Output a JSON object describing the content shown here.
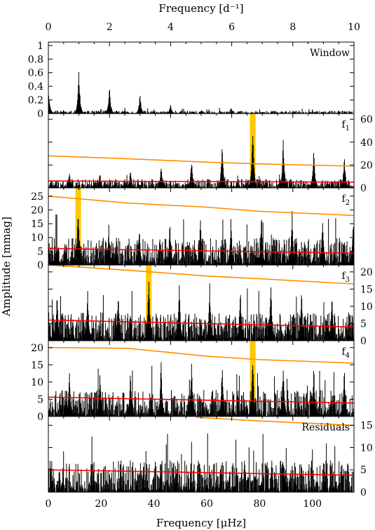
{
  "figure": {
    "top_axis_title": "Frequency [d⁻¹]",
    "bottom_axis_title": "Frequency [μHz]",
    "y_axis_title": "Amplitude [mmag]",
    "colors": {
      "spectrum": "#000000",
      "noise": "#ff0000",
      "significance": "#ff8c00",
      "highlight": "#ffc800"
    }
  },
  "chart_data": {
    "type": "line",
    "x_bottom": {
      "label": "Frequency [μHz]",
      "range": [
        0,
        115.74
      ],
      "ticks": [
        0,
        20,
        40,
        60,
        80,
        100
      ]
    },
    "x_top": {
      "label": "Frequency [d⁻¹]",
      "range": [
        0,
        10
      ],
      "ticks": [
        0,
        2,
        4,
        6,
        8,
        10
      ]
    },
    "y_label": "Amplitude [mmag]",
    "panels": [
      {
        "label": "Window",
        "subscript": "",
        "ylim": [
          0,
          1.05
        ],
        "ticks": [
          0,
          0.2,
          0.4,
          0.6,
          0.8,
          1
        ],
        "ticks_side": "left",
        "highlight": null,
        "spectrum": {
          "noise_level": 0.04,
          "alias_spacing": 11.57,
          "alias_heights": [
            0.35,
            0.69,
            0.46,
            0.32,
            0.14,
            0.06,
            0.04,
            0.03,
            0.03,
            0.03
          ],
          "alias_center": 0
        },
        "noise_line": null,
        "significance_line": null
      },
      {
        "label": "f",
        "subscript": "1",
        "ylim": [
          0,
          65
        ],
        "ticks": [
          0,
          20,
          40,
          60
        ],
        "ticks_side": "right",
        "highlight": {
          "x": 77.4,
          "amplitude": 63
        },
        "spectrum": {
          "noise_level": 7,
          "alias_spacing": 11.57,
          "alias_heights": [
            12,
            16,
            15,
            18,
            22,
            28,
            45,
            63,
            48,
            38,
            32
          ],
          "alias_center": 77.4
        },
        "noise_line": [
          [
            0,
            6
          ],
          [
            115.74,
            5
          ]
        ],
        "significance_line": [
          [
            0,
            28
          ],
          [
            30,
            25.5
          ],
          [
            60,
            22.5
          ],
          [
            80,
            21
          ],
          [
            115.74,
            19
          ]
        ]
      },
      {
        "label": "f",
        "subscript": "2",
        "ylim": [
          0,
          28
        ],
        "ticks": [
          0,
          5,
          10,
          15,
          20,
          25
        ],
        "ticks_side": "left",
        "highlight": {
          "x": 11.3,
          "amplitude": 25
        },
        "spectrum": {
          "noise_level": 9,
          "alias_spacing": 11.57,
          "alias_heights": [
            18,
            25,
            16,
            15,
            18,
            19,
            20,
            21,
            22,
            20,
            18
          ],
          "alias_center": 11.3
        },
        "noise_line": [
          [
            0,
            6
          ],
          [
            115.74,
            4.3
          ]
        ],
        "significance_line": [
          [
            0,
            25
          ],
          [
            30,
            22.5
          ],
          [
            60,
            21
          ],
          [
            80,
            19.5
          ],
          [
            115.74,
            18
          ]
        ]
      },
      {
        "label": "f",
        "subscript": "3",
        "ylim": [
          0,
          22
        ],
        "ticks": [
          0,
          5,
          10,
          15,
          20
        ],
        "ticks_side": "right",
        "highlight": {
          "x": 38.0,
          "amplitude": 21
        },
        "spectrum": {
          "noise_level": 7.5,
          "alias_spacing": 11.57,
          "alias_heights": [
            15,
            17,
            16,
            21,
            19,
            18,
            17,
            19,
            17,
            16,
            15
          ],
          "alias_center": 38.0
        },
        "noise_line": [
          [
            0,
            6
          ],
          [
            115.74,
            4
          ]
        ],
        "significance_line": [
          [
            0,
            22
          ],
          [
            30,
            20.5
          ],
          [
            60,
            18.8
          ],
          [
            80,
            18
          ],
          [
            115.74,
            16.5
          ]
        ]
      },
      {
        "label": "f",
        "subscript": "4",
        "ylim": [
          0,
          22
        ],
        "ticks": [
          0,
          5,
          10,
          15,
          20
        ],
        "ticks_side": "left",
        "highlight": {
          "x": 77.4,
          "amplitude": 20
        },
        "spectrum": {
          "noise_level": 7,
          "alias_spacing": 11.57,
          "alias_heights": [
            14,
            15,
            16,
            15,
            17,
            18,
            17,
            20,
            18,
            16,
            15
          ],
          "alias_center": 77.4
        },
        "noise_line": [
          [
            0,
            5.6
          ],
          [
            115.74,
            3.9
          ]
        ],
        "significance_line": [
          [
            0,
            20
          ],
          [
            30,
            19.8
          ],
          [
            60,
            17.5
          ],
          [
            80,
            16.5
          ],
          [
            115.74,
            15.5
          ]
        ]
      },
      {
        "label": "Residuals",
        "subscript": "",
        "ylim": [
          0,
          17
        ],
        "ticks": [
          0,
          5,
          10,
          15
        ],
        "ticks_side": "right",
        "highlight": null,
        "spectrum": {
          "noise_level": 6.5,
          "alias_spacing": 11.57,
          "alias_heights": [],
          "alias_center": 0
        },
        "noise_line": [
          [
            0,
            5
          ],
          [
            115.74,
            3.8
          ]
        ],
        "significance_line": [
          [
            56,
            16.8
          ],
          [
            80,
            16
          ],
          [
            115.74,
            15
          ]
        ]
      }
    ]
  }
}
